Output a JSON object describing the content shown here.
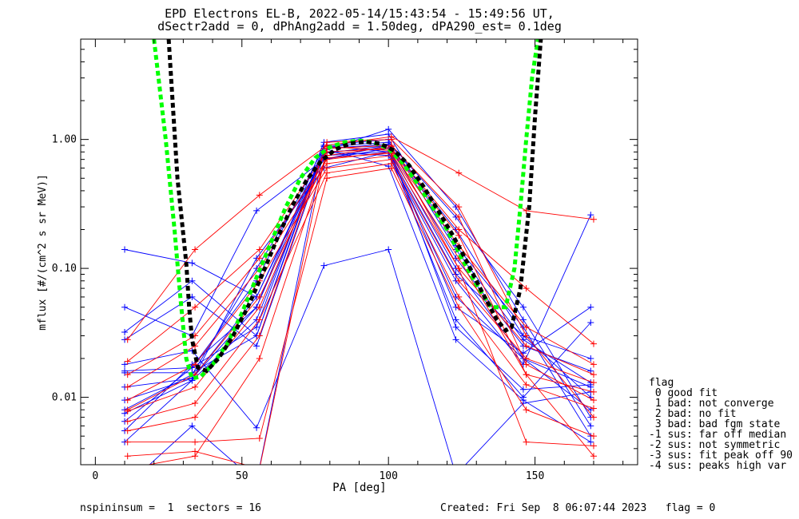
{
  "chart_data": {
    "type": "line",
    "title_line1": "EPD Electrons EL-B, 2022-05-14/15:43:54 - 15:49:56 UT,",
    "title_line2": "dSectr2add = 0, dPhAng2add = 1.50deg, dPA290_est=   0.1deg",
    "xlabel": "PA [deg]",
    "ylabel": "mflux [#/(cm^2 s sr MeV)]",
    "xlim": [
      -5,
      185
    ],
    "ylim": [
      0.003,
      6
    ],
    "y_scale": "log",
    "x_ticks": [
      0,
      50,
      100,
      150
    ],
    "x_tick_labels": [
      "0",
      "50",
      "100",
      "150"
    ],
    "y_ticks": [
      0.01,
      0.1,
      1.0
    ],
    "y_tick_labels": [
      "0.01",
      "0.10",
      "1.00"
    ],
    "colors": {
      "series_a": "#0000ff",
      "series_b": "#ff0000",
      "fit_green": "#00ff00",
      "fit_black": "#000000"
    },
    "pa_bins": [
      10,
      33,
      55,
      78,
      100,
      123,
      146,
      169
    ],
    "series_blue_profiles": [
      [
        0.0155,
        0.0155,
        0.03,
        0.85,
        0.92,
        0.12,
        0.025,
        0.016
      ],
      [
        0.016,
        0.017,
        0.035,
        0.9,
        1.0,
        0.14,
        0.028,
        0.013
      ],
      [
        0.012,
        0.014,
        0.05,
        0.8,
        0.85,
        0.1,
        0.02,
        0.012
      ],
      [
        0.0095,
        0.014,
        0.06,
        0.75,
        0.8,
        0.09,
        0.03,
        0.02
      ],
      [
        0.008,
        0.015,
        0.1,
        0.7,
        0.9,
        0.2,
        0.03,
        0.01
      ],
      [
        0.0075,
        0.0135,
        0.12,
        0.6,
        0.8,
        0.06,
        0.02,
        0.008
      ],
      [
        0.0065,
        0.017,
        0.08,
        0.88,
        0.95,
        0.25,
        0.05,
        0.007
      ],
      [
        0.0055,
        0.018,
        0.05,
        0.95,
        1.1,
        0.15,
        0.035,
        0.005
      ],
      [
        0.0045,
        0.0135,
        0.04,
        0.82,
        1.2,
        0.3,
        0.04,
        0.006
      ],
      [
        0.05,
        0.03,
        0.28,
        0.7,
        0.85,
        0.05,
        0.022,
        0.05
      ],
      [
        0.14,
        0.11,
        0.06,
        0.8,
        0.75,
        0.08,
        0.018,
        0.26
      ],
      [
        0.032,
        0.08,
        0.03,
        0.9,
        0.8,
        0.04,
        0.01,
        0.038
      ],
      [
        0.028,
        0.06,
        0.025,
        0.78,
        0.9,
        0.035,
        0.0115,
        0.0125
      ],
      [
        0.018,
        0.023,
        0.0058,
        0.105,
        0.14,
        0.0025,
        0.009,
        0.011
      ],
      [
        0.002,
        0.006,
        0.0022,
        0.85,
        0.62,
        0.028,
        0.0095,
        0.0045
      ]
    ],
    "series_red_profiles": [
      [
        0.028,
        0.14,
        0.37,
        0.9,
        1.05,
        0.55,
        0.28,
        0.24
      ],
      [
        0.019,
        0.05,
        0.14,
        0.8,
        0.85,
        0.2,
        0.07,
        0.026
      ],
      [
        0.015,
        0.03,
        0.12,
        0.7,
        0.8,
        0.15,
        0.035,
        0.018
      ],
      [
        0.012,
        0.025,
        0.1,
        0.65,
        0.75,
        0.1,
        0.025,
        0.015
      ],
      [
        0.0095,
        0.018,
        0.08,
        0.6,
        0.7,
        0.08,
        0.02,
        0.013
      ],
      [
        0.008,
        0.015,
        0.06,
        0.72,
        0.78,
        0.12,
        0.015,
        0.011
      ],
      [
        0.0078,
        0.012,
        0.05,
        0.85,
        0.9,
        0.25,
        0.018,
        0.0095
      ],
      [
        0.0065,
        0.009,
        0.04,
        0.55,
        0.65,
        0.06,
        0.0125,
        0.0082
      ],
      [
        0.0055,
        0.007,
        0.03,
        0.95,
        1.0,
        0.3,
        0.03,
        0.007
      ],
      [
        0.0045,
        0.0045,
        0.0048,
        0.5,
        0.6,
        0.05,
        0.008,
        0.005
      ],
      [
        0.0035,
        0.0038,
        0.0028,
        0.88,
        0.82,
        0.18,
        0.015,
        0.0035
      ],
      [
        0.0028,
        0.0035,
        0.02,
        0.75,
        0.88,
        0.1,
        0.0045,
        0.0042
      ]
    ],
    "fit_green": {
      "x": [
        20,
        24,
        27,
        29,
        31,
        33,
        36,
        40,
        45,
        50,
        55,
        60,
        65,
        70,
        75,
        80,
        85,
        90,
        95,
        100,
        105,
        110,
        115,
        120,
        125,
        130,
        135,
        140,
        143,
        145,
        147,
        149,
        151
      ],
      "y": [
        6,
        1.0,
        0.2,
        0.06,
        0.02,
        0.014,
        0.0145,
        0.018,
        0.026,
        0.045,
        0.085,
        0.16,
        0.3,
        0.5,
        0.72,
        0.87,
        0.95,
        0.98,
        0.95,
        0.85,
        0.65,
        0.45,
        0.3,
        0.2,
        0.12,
        0.075,
        0.05,
        0.05,
        0.1,
        0.3,
        1.0,
        3.0,
        6.0
      ]
    },
    "fit_black": {
      "x": [
        25,
        28,
        31,
        32,
        33,
        35,
        38,
        42,
        47,
        52,
        57,
        62,
        67,
        72,
        77,
        82,
        87,
        92,
        97,
        102,
        107,
        112,
        117,
        122,
        127,
        132,
        137,
        140,
        142,
        145,
        148,
        150,
        152
      ],
      "y": [
        6,
        0.5,
        0.11,
        0.05,
        0.028,
        0.017,
        0.016,
        0.02,
        0.03,
        0.05,
        0.09,
        0.17,
        0.3,
        0.48,
        0.68,
        0.84,
        0.93,
        0.96,
        0.93,
        0.82,
        0.63,
        0.43,
        0.28,
        0.18,
        0.11,
        0.065,
        0.04,
        0.033,
        0.035,
        0.07,
        0.3,
        1.5,
        6.0
      ]
    }
  },
  "legend": {
    "title": "flag",
    "items": [
      " 0 good fit",
      " 1 bad: not converge",
      " 2 bad: no fit",
      " 3 bad: bad fgm state",
      "-1 sus: far off median",
      "-2 sus: not symmetric",
      "-3 sus: fit peak off 90",
      "-4 sus: peaks high var"
    ]
  },
  "footer": {
    "left": "nspininsum =  1  sectors = 16",
    "right": "Created: Fri Sep  8 06:07:44 2023   flag = 0"
  }
}
